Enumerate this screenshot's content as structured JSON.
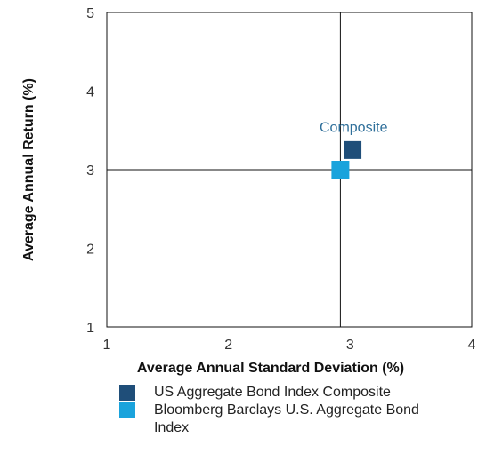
{
  "chart_data": {
    "type": "scatter",
    "xlabel": "Average Annual Standard Deviation (%)",
    "ylabel": "Average Annual Return (%)",
    "xlim": [
      1,
      4
    ],
    "ylim": [
      1,
      5
    ],
    "xticks": [
      1,
      2,
      3,
      4
    ],
    "yticks": [
      1,
      2,
      3,
      4,
      5
    ],
    "crosshair": {
      "x": 2.92,
      "y": 3.0
    },
    "series": [
      {
        "name": "US Aggregate Bond Index Composite",
        "color": "#1f4e79",
        "marker": "square",
        "x": 3.02,
        "y": 3.25
      },
      {
        "name": "Bloomberg Barclays U.S. Aggregate Bond Index",
        "color": "#1aa3dc",
        "marker": "square",
        "x": 2.92,
        "y": 3.0
      }
    ],
    "annotations": [
      {
        "text": "Composite",
        "x": 2.97,
        "y": 3.55
      }
    ],
    "legend_position": "bottom",
    "grid": false
  }
}
